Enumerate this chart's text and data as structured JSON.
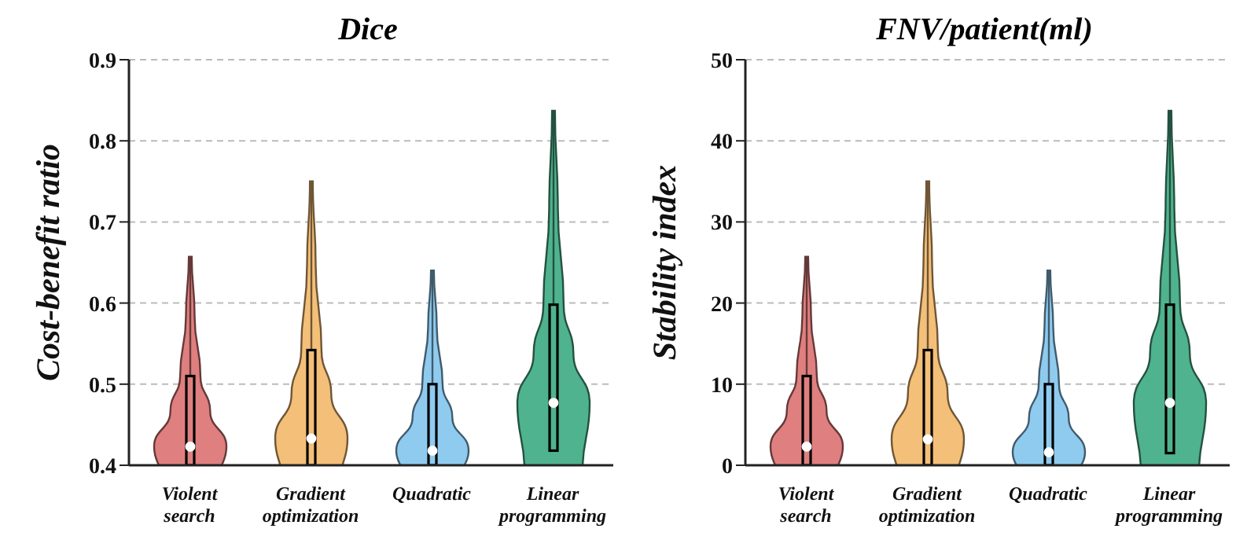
{
  "chart_data": [
    {
      "type": "box",
      "title": "Dice",
      "ylabel": "Cost-benefit ratio",
      "categories": [
        "Violent search",
        "Gradient optimization",
        "Quadratic",
        "Linear programming"
      ],
      "colors": [
        "#e07f7f",
        "#f4bf78",
        "#8fcbef",
        "#4fb38f"
      ],
      "ylim": [
        0.4,
        0.9
      ],
      "yticks": [
        0.4,
        0.5,
        0.6,
        0.7,
        0.8,
        0.9
      ],
      "grid": "y",
      "legend": false,
      "boxes": [
        {
          "low": 0.4,
          "q1": 0.4,
          "median": 0.423,
          "q3": 0.51,
          "high": 0.657
        },
        {
          "low": 0.4,
          "q1": 0.4,
          "median": 0.433,
          "q3": 0.542,
          "high": 0.75
        },
        {
          "low": 0.4,
          "q1": 0.4,
          "median": 0.418,
          "q3": 0.5,
          "high": 0.64
        },
        {
          "low": 0.418,
          "q1": 0.418,
          "median": 0.477,
          "q3": 0.598,
          "high": 0.837
        }
      ]
    },
    {
      "type": "box",
      "title": "FNV/patient(ml)",
      "ylabel": "Stability index",
      "categories": [
        "Violent search",
        "Gradient optimization",
        "Quadratic",
        "Linear programming"
      ],
      "colors": [
        "#e07f7f",
        "#f4bf78",
        "#8fcbef",
        "#4fb38f"
      ],
      "ylim": [
        0,
        50
      ],
      "yticks": [
        0,
        10,
        20,
        30,
        40,
        50
      ],
      "grid": "y",
      "legend": false,
      "boxes": [
        {
          "low": 0,
          "q1": 0,
          "median": 2.3,
          "q3": 11,
          "high": 25.7
        },
        {
          "low": 0,
          "q1": 0,
          "median": 3.2,
          "q3": 14.2,
          "high": 35
        },
        {
          "low": 0,
          "q1": 0,
          "median": 1.6,
          "q3": 10,
          "high": 24
        },
        {
          "low": 1.5,
          "q1": 1.5,
          "median": 7.7,
          "q3": 19.8,
          "high": 43.7
        }
      ]
    }
  ]
}
